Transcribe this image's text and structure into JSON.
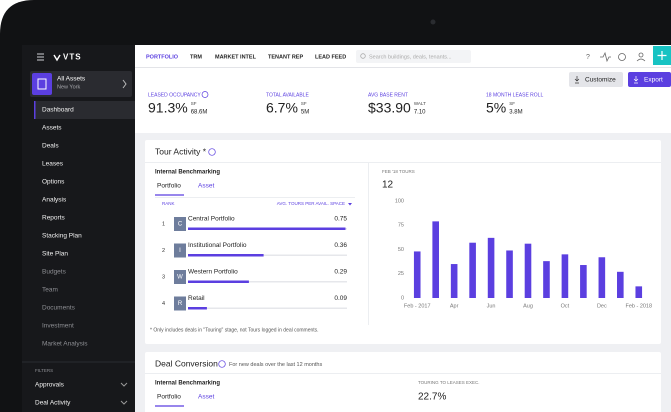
{
  "sidebar": {
    "logo": "VTS",
    "asset_selector": {
      "title": "All Assets",
      "subtitle": "New York"
    },
    "nav": [
      "Dashboard",
      "Assets",
      "Deals",
      "Leases",
      "Options",
      "Analysis",
      "Reports",
      "Stacking Plan",
      "Site Plan",
      "Budgets",
      "Team",
      "Documents",
      "Investment",
      "Market Analysis"
    ],
    "filters_label": "FILTERS",
    "filters": [
      "Approvals",
      "Deal Activity"
    ]
  },
  "top_nav": {
    "tabs": [
      "PORTFOLIO",
      "TRM",
      "MARKET INTEL",
      "TENANT REP",
      "LEAD FEED"
    ],
    "search_placeholder": "Search buildings, deals, tenants..."
  },
  "actions": [
    "Customize",
    "Export"
  ],
  "kpis": [
    {
      "label": "LEASED OCCUPANCY",
      "value": "91.3%",
      "unit": "SF",
      "sub": "68.6M"
    },
    {
      "label": "TOTAL AVAILABLE",
      "value": "6.7%",
      "unit": "SF",
      "sub": "5M"
    },
    {
      "label": "AVG BASE RENT",
      "value": "$33.90",
      "unit": "WALT",
      "sub": "7.10"
    },
    {
      "label": "18 MONTH LEASE ROLL",
      "value": "5%",
      "unit": "SF",
      "sub": "3.8M"
    }
  ],
  "tour_activity": {
    "title": "Tour Activity *",
    "benchmark_title": "Internal Benchmarking",
    "tabs": [
      "Portfolio",
      "Asset"
    ],
    "columns": [
      "RANK",
      "AVG. TOURS PER AVAIL. SPACE"
    ],
    "rows": [
      {
        "rank": 1,
        "badge": "C",
        "name": "Central Portfolio",
        "value": 0.75
      },
      {
        "rank": 2,
        "badge": "I",
        "name": "Institutional Portfolio",
        "value": 0.36
      },
      {
        "rank": 3,
        "badge": "W",
        "name": "Western Portfolio",
        "value": 0.29
      },
      {
        "rank": 4,
        "badge": "R",
        "name": "Retail",
        "value": 0.09
      }
    ],
    "footnote": "* Only includes deals in \"Touring\" stage, not Tours logged in deal comments."
  },
  "chart_data": {
    "type": "bar",
    "kicker": "FEB '18 TOURS",
    "headline": 12,
    "categories": [
      "Feb - 2017",
      null,
      "Apr",
      null,
      "Jun",
      null,
      "Aug",
      null,
      "Oct",
      null,
      "Dec",
      null,
      "Feb - 2018"
    ],
    "values": [
      48,
      79,
      35,
      57,
      62,
      49,
      56,
      38,
      45,
      34,
      42,
      27,
      12
    ],
    "color": "#5b3fe0",
    "ylim": [
      0,
      100
    ],
    "yticks": [
      0,
      25,
      50,
      75,
      100
    ],
    "grid": false
  },
  "deal_conversion": {
    "title": "Deal Conversion",
    "subtitle": "For new deals over the last 12 months",
    "benchmark_title": "Internal Benchmarking",
    "tabs": [
      "Portfolio",
      "Asset"
    ],
    "metric_label": "TOURING TO LEASES EXEC.",
    "metric_value": "22.7%"
  }
}
